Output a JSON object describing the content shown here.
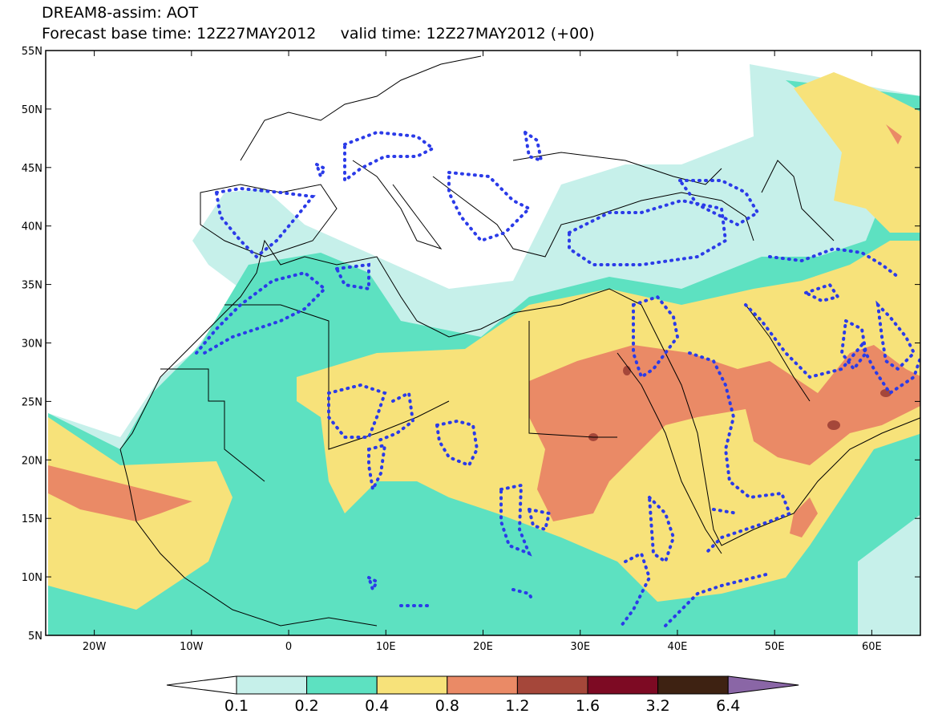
{
  "title": {
    "line1": "DREAM8-assim: AOT",
    "line2": "Forecast base time: 12Z27MAY2012     valid time: 12Z27MAY2012 (+00)"
  },
  "map": {
    "projection": "lat-lon",
    "lon_range": [
      -25,
      65
    ],
    "lat_range": [
      5,
      55
    ],
    "lat_ticks": [
      {
        "value": 55,
        "label": "55N"
      },
      {
        "value": 50,
        "label": "50N"
      },
      {
        "value": 45,
        "label": "45N"
      },
      {
        "value": 40,
        "label": "40N"
      },
      {
        "value": 35,
        "label": "35N"
      },
      {
        "value": 30,
        "label": "30N"
      },
      {
        "value": 25,
        "label": "25N"
      },
      {
        "value": 20,
        "label": "20N"
      },
      {
        "value": 15,
        "label": "15N"
      },
      {
        "value": 10,
        "label": "10N"
      },
      {
        "value": 5,
        "label": "5N"
      }
    ],
    "lon_ticks": [
      {
        "value": -20,
        "label": "20W"
      },
      {
        "value": -10,
        "label": "10W"
      },
      {
        "value": 0,
        "label": "0"
      },
      {
        "value": 10,
        "label": "10E"
      },
      {
        "value": 20,
        "label": "20E"
      },
      {
        "value": 30,
        "label": "30E"
      },
      {
        "value": 40,
        "label": "40E"
      },
      {
        "value": 50,
        "label": "50E"
      },
      {
        "value": 60,
        "label": "60E"
      }
    ],
    "features": "AOT shaded contours with dotted blue contours and coastlines/borders"
  },
  "colorbar": {
    "levels": [
      "0.1",
      "0.2",
      "0.4",
      "0.8",
      "1.2",
      "1.6",
      "3.2",
      "6.4"
    ],
    "colors": [
      "#ffffff",
      "#c6f0ea",
      "#5de1c1",
      "#f7e27a",
      "#ea8a66",
      "#a5473a",
      "#7d0a23",
      "#3e2212",
      "#8a66a6"
    ]
  },
  "colors": {
    "c01": "#c6f0ea",
    "c02": "#5de1c1",
    "c04": "#f7e27a",
    "c08": "#ea8a66",
    "c12": "#a5473a",
    "dotted": "#2b3be8"
  }
}
